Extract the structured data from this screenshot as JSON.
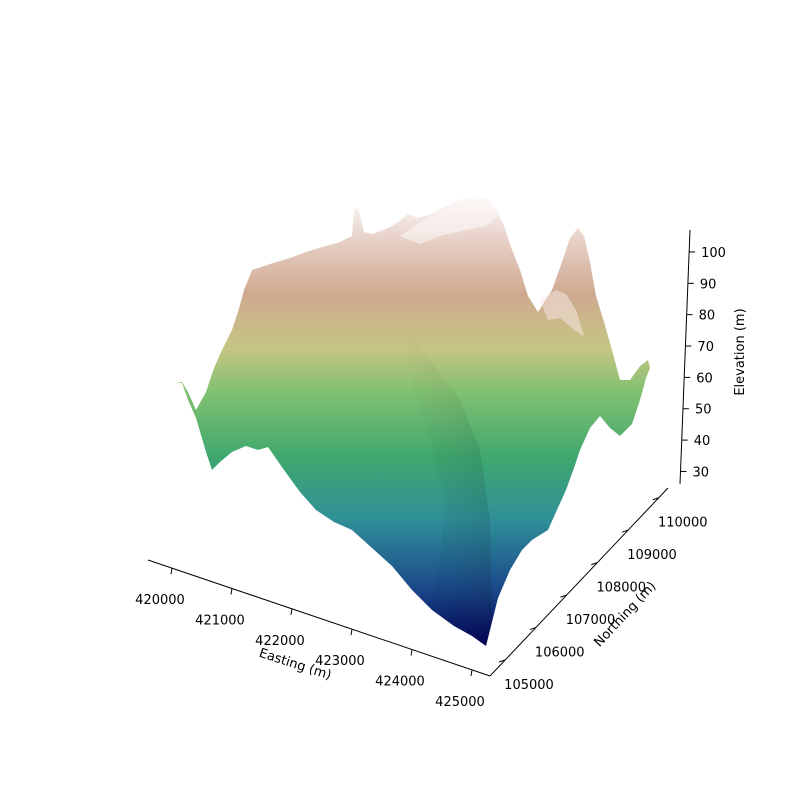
{
  "chart_data": {
    "type": "surface3d",
    "title": "",
    "xlabel": "Easting (m)",
    "ylabel": "Northing (m)",
    "zlabel": "Elevation (m)",
    "x_ticks": [
      "420000",
      "421000",
      "422000",
      "423000",
      "424000",
      "425000"
    ],
    "y_ticks": [
      "105000",
      "106000",
      "107000",
      "108000",
      "109000",
      "110000"
    ],
    "z_ticks": [
      "30",
      "40",
      "50",
      "60",
      "70",
      "80",
      "90",
      "100"
    ],
    "xlim": [
      419600,
      425300
    ],
    "ylim": [
      105000,
      110300
    ],
    "zlim": [
      26,
      107
    ],
    "colormap": "gist_earth",
    "z_min_approx": 26,
    "z_max_approx": 105,
    "surface_notes": "terrain low in the south-east corner (~26 m), ridges rising to ~105 m toward the north",
    "ridge_peaks_approx": [
      {
        "easting": 423300,
        "northing": 109800,
        "elevation": 105
      },
      {
        "easting": 425000,
        "northing": 108600,
        "elevation": 96
      },
      {
        "easting": 420500,
        "northing": 109600,
        "elevation": 88
      }
    ],
    "valley_min_approx": {
      "easting": 425000,
      "northing": 105000,
      "elevation": 26
    },
    "colors": {
      "low": "#0a0a7a",
      "mid_low": "#2e8a9a",
      "mid": "#48b060",
      "mid_high": "#b8c480",
      "high": "#d0a890",
      "peak": "#fdfafa"
    }
  }
}
